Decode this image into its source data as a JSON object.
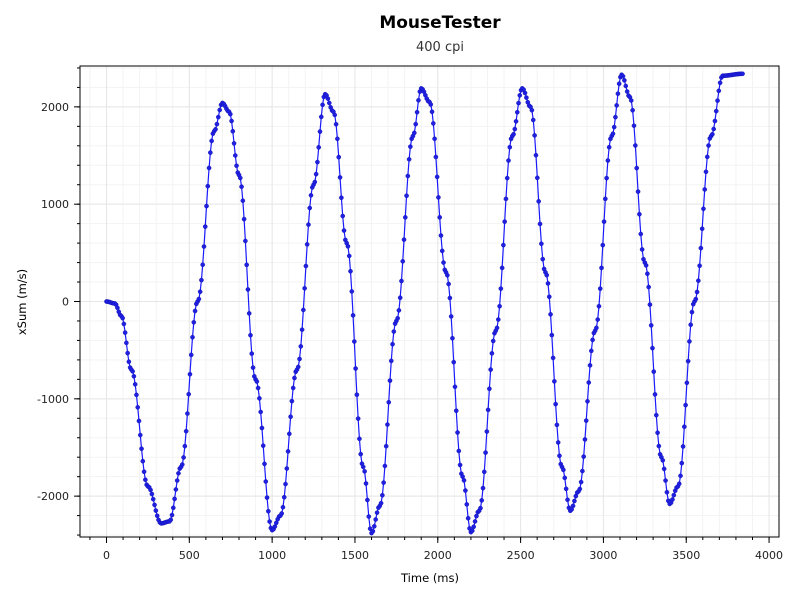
{
  "chart_data": {
    "type": "scatter",
    "title": "MouseTester",
    "subtitle": "400 cpi",
    "xlabel": "Time (ms)",
    "ylabel": "xSum (m/s)",
    "xlim": [
      -160,
      4060
    ],
    "ylim": [
      -2420,
      2420
    ],
    "x_ticks": [
      0,
      500,
      1000,
      1500,
      2000,
      2500,
      3000,
      3500,
      4000
    ],
    "y_ticks": [
      -2000,
      -1000,
      0,
      1000,
      2000
    ],
    "x_tick_labels": [
      "0",
      "500",
      "1000",
      "1500",
      "2000",
      "2500",
      "3000",
      "3500",
      "4000"
    ],
    "y_tick_labels": [
      "-2000",
      "-1000",
      "0",
      "1000",
      "2000"
    ],
    "grid": true,
    "series": [
      {
        "color": "#1f1fe0",
        "keypoints": [
          [
            0,
            0
          ],
          [
            50,
            -20
          ],
          [
            90,
            -150
          ],
          [
            150,
            -700
          ],
          [
            250,
            -1900
          ],
          [
            330,
            -2280
          ],
          [
            380,
            -2260
          ],
          [
            450,
            -1700
          ],
          [
            550,
            0
          ],
          [
            650,
            1750
          ],
          [
            700,
            2040
          ],
          [
            740,
            1950
          ],
          [
            800,
            1300
          ],
          [
            900,
            -800
          ],
          [
            1000,
            -2350
          ],
          [
            1050,
            -2200
          ],
          [
            1150,
            -700
          ],
          [
            1250,
            1200
          ],
          [
            1320,
            2130
          ],
          [
            1370,
            1950
          ],
          [
            1450,
            600
          ],
          [
            1550,
            -1700
          ],
          [
            1600,
            -2380
          ],
          [
            1650,
            -2100
          ],
          [
            1750,
            -200
          ],
          [
            1850,
            1700
          ],
          [
            1900,
            2190
          ],
          [
            1950,
            2050
          ],
          [
            2050,
            300
          ],
          [
            2150,
            -1800
          ],
          [
            2200,
            -2370
          ],
          [
            2250,
            -2150
          ],
          [
            2350,
            -300
          ],
          [
            2450,
            1700
          ],
          [
            2510,
            2190
          ],
          [
            2560,
            2000
          ],
          [
            2650,
            300
          ],
          [
            2750,
            -1700
          ],
          [
            2800,
            -2150
          ],
          [
            2850,
            -1950
          ],
          [
            2950,
            -300
          ],
          [
            3050,
            1700
          ],
          [
            3110,
            2330
          ],
          [
            3160,
            2100
          ],
          [
            3250,
            400
          ],
          [
            3350,
            -1600
          ],
          [
            3400,
            -2080
          ],
          [
            3450,
            -1900
          ],
          [
            3550,
            0
          ],
          [
            3650,
            1700
          ],
          [
            3720,
            2320
          ],
          [
            3840,
            2340
          ]
        ]
      }
    ]
  }
}
